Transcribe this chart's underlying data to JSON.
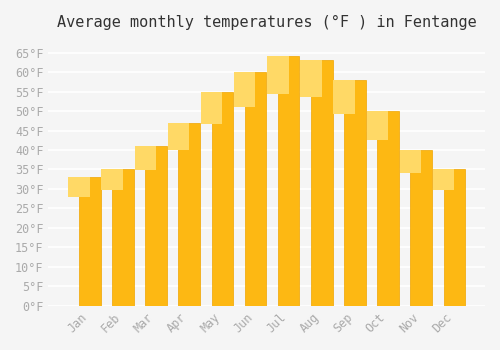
{
  "title": "Average monthly temperatures (°F ) in Fentange",
  "months": [
    "Jan",
    "Feb",
    "Mar",
    "Apr",
    "May",
    "Jun",
    "Jul",
    "Aug",
    "Sep",
    "Oct",
    "Nov",
    "Dec"
  ],
  "values": [
    33,
    35,
    41,
    47,
    55,
    60,
    64,
    63,
    58,
    50,
    40,
    35
  ],
  "bar_color_face": "#FDB813",
  "bar_color_edge": "#F0A500",
  "bar_gradient_top": "#FFD966",
  "ylim": [
    0,
    68
  ],
  "yticks": [
    0,
    5,
    10,
    15,
    20,
    25,
    30,
    35,
    40,
    45,
    50,
    55,
    60,
    65
  ],
  "ytick_labels": [
    "0°F",
    "5°F",
    "10°F",
    "15°F",
    "20°F",
    "25°F",
    "30°F",
    "35°F",
    "40°F",
    "45°F",
    "50°F",
    "55°F",
    "60°F",
    "65°F"
  ],
  "background_color": "#f5f5f5",
  "grid_color": "#ffffff",
  "title_fontsize": 11,
  "tick_fontsize": 8.5,
  "tick_color": "#aaaaaa",
  "font_family": "monospace"
}
